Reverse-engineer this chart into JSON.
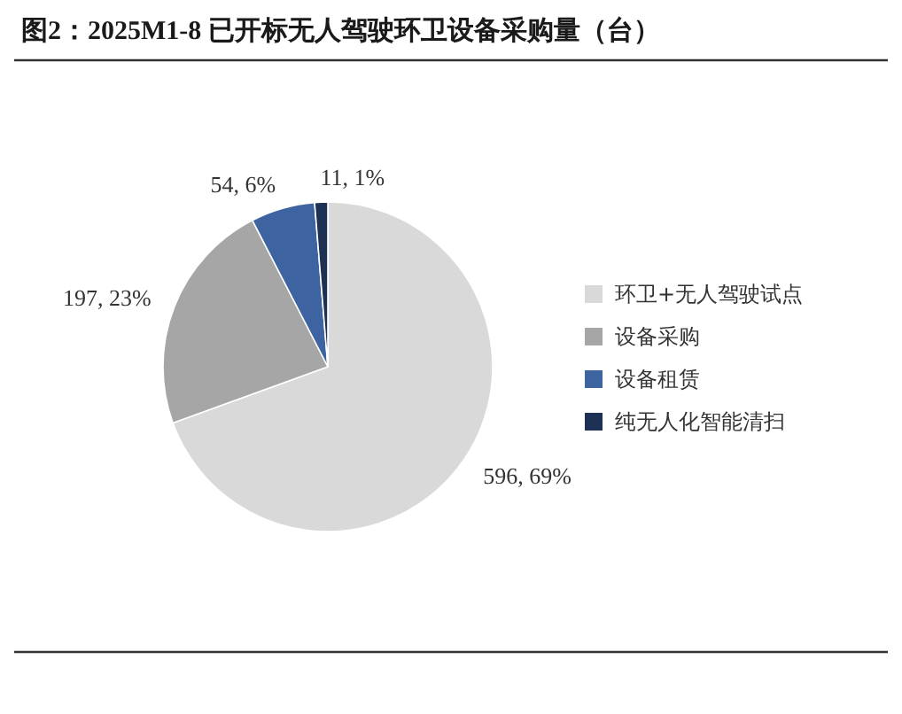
{
  "chart_data": {
    "type": "pie",
    "title": "图2：2025M1-8 已开标无人驾驶环卫设备采购量（台）",
    "categories": [
      "环卫+无人驾驶试点",
      "设备采购",
      "设备租赁",
      "纯无人化智能清扫"
    ],
    "values": [
      596,
      197,
      54,
      11
    ],
    "colors": [
      "#d9d9d9",
      "#a6a6a6",
      "#3d64a0",
      "#1c3153"
    ],
    "value_labels": [
      "596, 69%",
      "197, 23%",
      "54, 6%",
      "11, 1%"
    ],
    "legend": "right"
  }
}
